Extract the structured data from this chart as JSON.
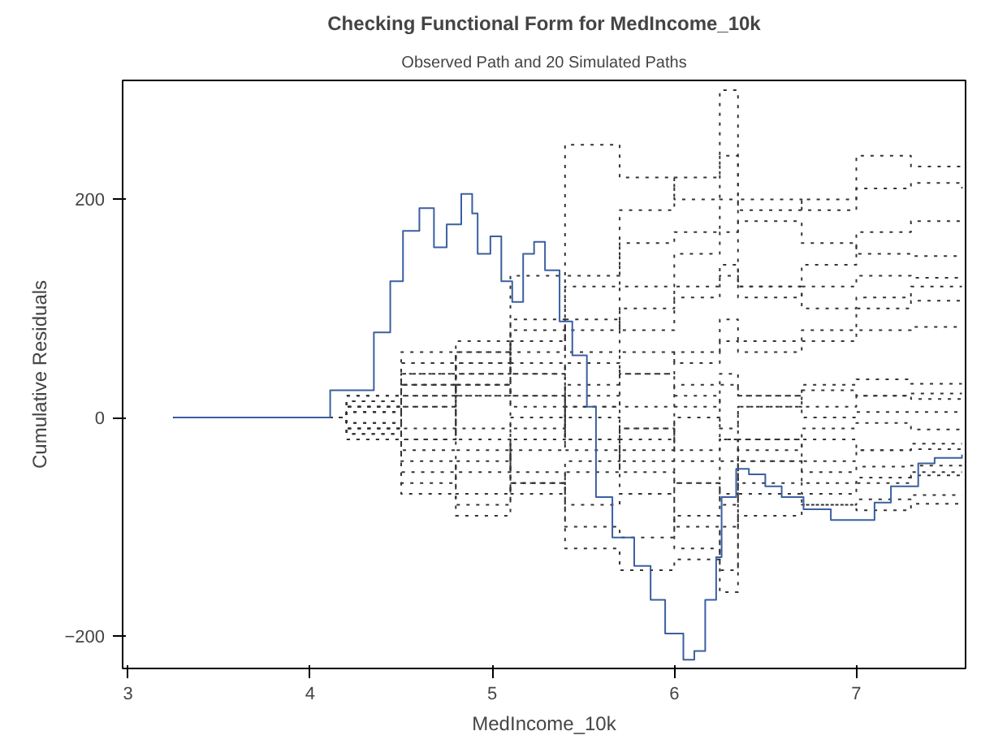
{
  "chart_data": {
    "type": "step",
    "title": "Checking Functional Form for MedIncome_10k",
    "subtitle": "Observed Path and 20 Simulated Paths",
    "xlabel": "MedIncome_10k",
    "ylabel": "Cumulative Residuals",
    "xlim": [
      2.97,
      7.6
    ],
    "ylim": [
      -230,
      309
    ],
    "xticks": [
      3,
      4,
      5,
      6,
      7
    ],
    "yticks": [
      -200,
      0,
      200
    ],
    "x": [
      3.25,
      4.0,
      4.2,
      4.5,
      4.8,
      5.1,
      5.4,
      5.7,
      6.0,
      6.25,
      6.35,
      6.7,
      7.0,
      7.3,
      7.58
    ],
    "series": [
      {
        "color": "#333333",
        "line_style": "dotted",
        "values": [
          0,
          0,
          10,
          30,
          40,
          60,
          130,
          190,
          220,
          300,
          190,
          200,
          240,
          230,
          230
        ]
      },
      {
        "color": "#333333",
        "line_style": "dotted",
        "values": [
          0,
          0,
          -10,
          20,
          60,
          130,
          250,
          220,
          200,
          240,
          200,
          190,
          210,
          215,
          210
        ]
      },
      {
        "color": "#333333",
        "line_style": "dotted",
        "values": [
          0,
          0,
          5,
          -20,
          30,
          70,
          120,
          160,
          170,
          200,
          120,
          140,
          170,
          180,
          180
        ]
      },
      {
        "color": "#333333",
        "line_style": "dotted",
        "values": [
          0,
          0,
          15,
          40,
          50,
          90,
          80,
          120,
          150,
          170,
          180,
          160,
          150,
          148,
          148
        ]
      },
      {
        "color": "#333333",
        "line_style": "dotted",
        "values": [
          0,
          0,
          -5,
          10,
          50,
          80,
          60,
          100,
          110,
          130,
          110,
          120,
          130,
          128,
          128
        ]
      },
      {
        "color": "#333333",
        "line_style": "dotted",
        "values": [
          0,
          0,
          10,
          50,
          70,
          40,
          90,
          80,
          120,
          140,
          120,
          100,
          110,
          120,
          120
        ]
      },
      {
        "color": "#333333",
        "line_style": "dotted",
        "values": [
          0,
          0,
          20,
          60,
          30,
          20,
          50,
          40,
          60,
          90,
          70,
          80,
          100,
          107,
          107
        ]
      },
      {
        "color": "#333333",
        "line_style": "dotted",
        "values": [
          0,
          0,
          -10,
          30,
          20,
          -10,
          30,
          60,
          50,
          70,
          60,
          70,
          80,
          83,
          83
        ]
      },
      {
        "color": "#333333",
        "line_style": "dotted",
        "values": [
          0,
          0,
          5,
          -30,
          -50,
          -20,
          20,
          10,
          30,
          40,
          20,
          30,
          35,
          31,
          31
        ]
      },
      {
        "color": "#333333",
        "line_style": "dotted",
        "values": [
          0,
          0,
          -15,
          40,
          20,
          50,
          10,
          -20,
          10,
          30,
          20,
          10,
          20,
          17,
          17
        ]
      },
      {
        "color": "#333333",
        "line_style": "dotted",
        "values": [
          0,
          0,
          10,
          -40,
          -70,
          -30,
          10,
          40,
          20,
          -10,
          10,
          0,
          5,
          5,
          5
        ]
      },
      {
        "color": "#333333",
        "line_style": "dotted",
        "values": [
          0,
          0,
          -20,
          -60,
          -40,
          0,
          -30,
          -70,
          -60,
          -80,
          -20,
          -10,
          -5,
          -11,
          -11
        ]
      },
      {
        "color": "#333333",
        "line_style": "dotted",
        "values": [
          0,
          0,
          15,
          50,
          40,
          20,
          -20,
          -10,
          -40,
          -20,
          -30,
          -20,
          -30,
          -24,
          -24
        ]
      },
      {
        "color": "#333333",
        "line_style": "dotted",
        "values": [
          0,
          0,
          -5,
          -70,
          -90,
          -60,
          -100,
          -110,
          -90,
          -40,
          -20,
          -40,
          -30,
          -29,
          -29
        ]
      },
      {
        "color": "#333333",
        "line_style": "dotted",
        "values": [
          0,
          0,
          20,
          30,
          60,
          40,
          0,
          -40,
          -60,
          -70,
          -40,
          -50,
          -45,
          -44,
          -44
        ]
      },
      {
        "color": "#333333",
        "line_style": "dotted",
        "values": [
          0,
          0,
          -10,
          -20,
          -10,
          -50,
          -80,
          -70,
          -120,
          -160,
          -40,
          -60,
          -55,
          -50,
          -50
        ]
      },
      {
        "color": "#333333",
        "line_style": "dotted",
        "values": [
          0,
          0,
          5,
          20,
          -20,
          -60,
          -40,
          -10,
          -30,
          -20,
          -60,
          -70,
          -60,
          -53,
          -53
        ]
      },
      {
        "color": "#333333",
        "line_style": "dotted",
        "values": [
          0,
          0,
          -20,
          -50,
          -80,
          -60,
          -120,
          -140,
          -130,
          -100,
          -70,
          -80,
          -75,
          -71,
          -71
        ]
      },
      {
        "color": "#333333",
        "line_style": "dotted",
        "values": [
          0,
          0,
          10,
          -10,
          30,
          10,
          -20,
          -50,
          -100,
          -140,
          -90,
          -80,
          -85,
          -79,
          -79
        ]
      },
      {
        "color": "#333333",
        "line_style": "dotted",
        "values": [
          0,
          0,
          -15,
          10,
          -30,
          -70,
          -50,
          -30,
          0,
          -20,
          10,
          25,
          20,
          22,
          22
        ]
      },
      {
        "color": "#3b5fa0",
        "line_style": "solid",
        "x": [
          3.25,
          4.11,
          4.35,
          4.44,
          4.51,
          4.6,
          4.68,
          4.75,
          4.83,
          4.89,
          4.92,
          4.99,
          5.05,
          5.11,
          5.17,
          5.23,
          5.29,
          5.37,
          5.44,
          5.52,
          5.57,
          5.66,
          5.78,
          5.87,
          5.95,
          6.05,
          6.11,
          6.17,
          6.23,
          6.26,
          6.34,
          6.41,
          6.5,
          6.59,
          6.71,
          6.86,
          6.95,
          7.1,
          7.19,
          7.34,
          7.43,
          7.58
        ],
        "values": [
          0,
          25,
          78,
          125,
          171,
          192,
          156,
          177,
          205,
          187,
          150,
          166,
          125,
          106,
          150,
          161,
          135,
          88,
          57,
          10,
          -73,
          -110,
          -136,
          -167,
          -198,
          -222,
          -214,
          -167,
          -128,
          -73,
          -47,
          -52,
          -63,
          -73,
          -84,
          -94,
          -94,
          -78,
          -63,
          -42,
          -37,
          -34
        ]
      }
    ]
  }
}
